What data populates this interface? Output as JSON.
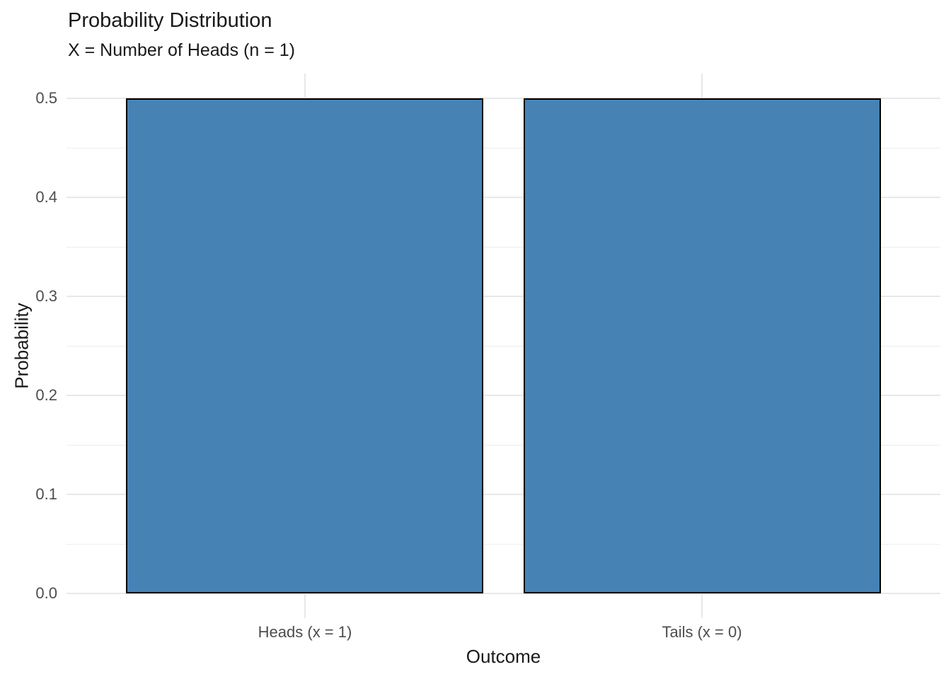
{
  "chart_data": {
    "type": "bar",
    "title": "Probability Distribution",
    "subtitle": "X = Number of Heads (n = 1)",
    "xlabel": "Outcome",
    "ylabel": "Probability",
    "categories": [
      "Heads (x = 1)",
      "Tails (x = 0)"
    ],
    "values": [
      0.5,
      0.5
    ],
    "ylim": [
      0,
      0.5
    ],
    "yticks": [
      0.0,
      0.1,
      0.2,
      0.3,
      0.4,
      0.5
    ],
    "ytick_labels": [
      "0.0",
      "0.1",
      "0.2",
      "0.3",
      "0.4",
      "0.5"
    ],
    "grid": "on",
    "legend": "none",
    "theme": "minimal-white",
    "colors": {
      "bar_fill": "#4682B4",
      "bar_border": "#000000",
      "grid_major": "#E8E8E8",
      "grid_minor": "#EDEDED",
      "tick_label": "#4D4D4D",
      "axis_title": "#1A1A1A",
      "title_text": "#1A1A1A",
      "background": "#FFFFFF"
    }
  }
}
